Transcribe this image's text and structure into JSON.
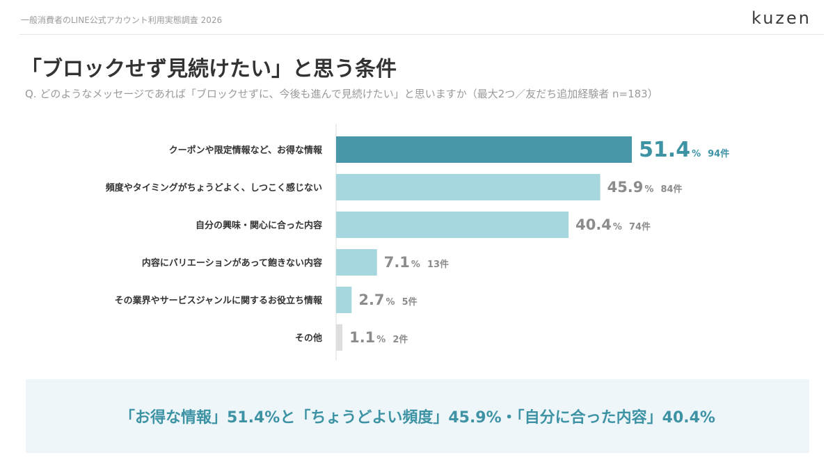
{
  "header": {
    "survey_name": "一般消費者のLINE公式アカウント利用実態調査 2026",
    "logo_text": "kuzen"
  },
  "title": "「ブロックせず見続けたい」と思う条件",
  "question": "Q. どのようなメッセージであれば「ブロックせずに、今後も進んで見続けたい」と思いますか（最大2つ／友だち追加経験者 n=183）",
  "summary": "「お得な情報」51.4%と「ちょうどよい頻度」45.9%・「自分に合った内容」40.4%",
  "colors": {
    "highlight_bar": "#4797a8",
    "bar": "#a6d6de",
    "other_bar": "#dedede",
    "highlight_text": "#3d93a4",
    "value_text": "#8c8c8c"
  },
  "chart_data": {
    "type": "bar",
    "orientation": "horizontal",
    "categories": [
      "クーポンや限定情報など、お得な情報",
      "頻度やタイミングがちょうどよく、しつこく感じない",
      "自分の興味・関心に合った内容",
      "内容にバリエーションがあって飽きない内容",
      "その業界やサービスジャンルに関するお役立ち情報",
      "その他"
    ],
    "values": [
      51.4,
      45.9,
      40.4,
      7.1,
      2.7,
      1.1
    ],
    "value_labels": [
      "51.4",
      "45.9",
      "40.4",
      "7.1",
      "2.7",
      "1.1"
    ],
    "percent_unit": "%",
    "counts": [
      "94件",
      "84件",
      "74件",
      "13件",
      "5件",
      "2件"
    ],
    "xlim": [
      0,
      60
    ],
    "grid": false,
    "legend": "none"
  }
}
